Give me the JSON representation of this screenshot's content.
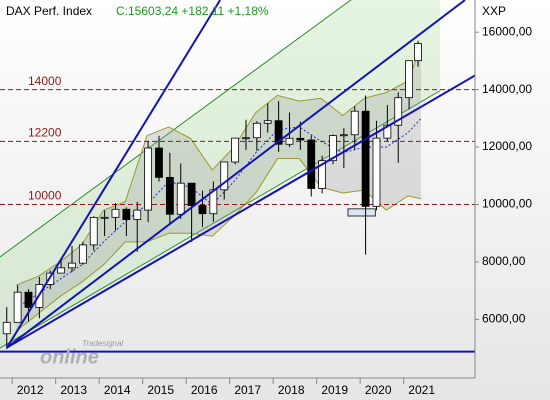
{
  "chart_data": {
    "type": "candlestick",
    "title": "DAX Perf. Index",
    "quote": "C:15603,24 +182,11 +1,18%",
    "axis_label": "XXP",
    "watermark": [
      "Tradesignal",
      "online"
    ],
    "x": [
      2011.875,
      2012.125,
      2012.375,
      2012.625,
      2012.875,
      2013.125,
      2013.375,
      2013.625,
      2013.875,
      2014.125,
      2014.375,
      2014.625,
      2014.875,
      2015.125,
      2015.375,
      2015.625,
      2015.875,
      2016.125,
      2016.375,
      2016.625,
      2016.875,
      2017.125,
      2017.375,
      2017.625,
      2017.875,
      2018.125,
      2018.375,
      2018.625,
      2018.875,
      2019.125,
      2019.375,
      2019.625,
      2019.875,
      2020.125,
      2020.375,
      2020.625,
      2020.875,
      2021.125,
      2021.33
    ],
    "open": [
      5500,
      5898,
      6947,
      6416,
      7216,
      7612,
      7795,
      7959,
      8594,
      9552,
      9555,
      9833,
      9474,
      9806,
      11966,
      10945,
      9660,
      10743,
      9965,
      9680,
      10511,
      11481,
      12312,
      12325,
      12829,
      12918,
      12097,
      12306,
      12247,
      10559,
      11526,
      12399,
      12428,
      13249,
      9936,
      12311,
      12761,
      13719,
      15008
    ],
    "high": [
      6430,
      7194,
      7050,
      7478,
      7700,
      8070,
      8560,
      8700,
      9590,
      9794,
      10050,
      9900,
      10093,
      12219,
      12391,
      11800,
      11430,
      10750,
      10486,
      10800,
      11481,
      12313,
      12951,
      12900,
      13526,
      13597,
      13204,
      12887,
      12400,
      11700,
      12436,
      12656,
      13425,
      13795,
      12913,
      13460,
      13903,
      15008,
      15700
    ],
    "low": [
      4966,
      5900,
      5915,
      6040,
      7050,
      7600,
      7645,
      7900,
      8400,
      8900,
      9100,
      8900,
      8355,
      9382,
      10800,
      9338,
      9500,
      8699,
      9214,
      9400,
      10174,
      11400,
      11900,
      11868,
      12500,
      11831,
      12000,
      11900,
      10279,
      10386,
      11400,
      11266,
      11900,
      8255,
      9800,
      12200,
      11450,
      13310,
      14800
    ],
    "close": [
      5898,
      6947,
      6416,
      7216,
      7612,
      7795,
      7959,
      8594,
      9552,
      9555,
      9833,
      9474,
      9806,
      11966,
      10945,
      9660,
      10743,
      9965,
      9680,
      10511,
      11481,
      12312,
      12325,
      12829,
      12918,
      12097,
      12306,
      12247,
      10559,
      11526,
      12399,
      12428,
      13249,
      9936,
      12311,
      12761,
      13719,
      15008,
      15603
    ],
    "up_color": "#ffffff",
    "down_color": "#000000",
    "bands": {
      "x": [
        2012.1,
        2012.6,
        2013.1,
        2013.6,
        2014.1,
        2014.6,
        2015.1,
        2015.6,
        2016.1,
        2016.6,
        2017.1,
        2017.6,
        2018.1,
        2018.6,
        2019.1,
        2019.6,
        2020.1,
        2020.6,
        2021.1,
        2021.4
      ],
      "upper": [
        7200,
        7500,
        8000,
        8600,
        9800,
        10100,
        12400,
        12700,
        12300,
        11200,
        12000,
        13200,
        13800,
        13600,
        13700,
        13100,
        13700,
        13900,
        14300,
        15500
      ],
      "lower": [
        5600,
        6200,
        6800,
        7300,
        7900,
        8700,
        8700,
        9000,
        9000,
        8900,
        9600,
        10400,
        11600,
        11600,
        10600,
        10400,
        10500,
        9800,
        10300,
        10200
      ],
      "middle": [
        6400,
        6900,
        7400,
        7900,
        8700,
        9400,
        10000,
        10800,
        10600,
        10000,
        10800,
        11800,
        12600,
        12700,
        12200,
        11800,
        12000,
        12000,
        12500,
        13000
      ]
    },
    "channel": {
      "x": [
        2011.72,
        2021.84
      ],
      "upper": [
        8175,
        19400
      ],
      "lower": [
        5000,
        13965
      ]
    },
    "trendlines": [
      {
        "x": [
          2011.88,
          2016.78
        ],
        "y": [
          5020,
          17120
        ]
      },
      {
        "x": [
          2011.88,
          2022.41
        ],
        "y": [
          5020,
          17120
        ]
      },
      {
        "x": [
          2011.88,
          2022.64
        ],
        "y": [
          5020,
          14491
        ]
      }
    ],
    "support": 4877,
    "levels": [
      14000,
      12200,
      10000
    ],
    "level_color": "#8b1a1a",
    "zone": {
      "x": [
        2019.72,
        2020.35
      ],
      "y": [
        9600,
        9850
      ]
    },
    "xlim": [
      2011.72,
      2022.64
    ],
    "ylim": [
      3960,
      17120
    ],
    "xticks": [
      2012,
      2013,
      2014,
      2015,
      2016,
      2017,
      2018,
      2019,
      2020,
      2021
    ],
    "yticks": [
      {
        "value": 6000,
        "label": "6000,00"
      },
      {
        "value": 8000,
        "label": "8000,00"
      },
      {
        "value": 10000,
        "label": "10000,00"
      },
      {
        "value": 12000,
        "label": "12000,00"
      },
      {
        "value": 14000,
        "label": "14000,00"
      },
      {
        "value": 16000,
        "label": "16000,00"
      }
    ]
  }
}
